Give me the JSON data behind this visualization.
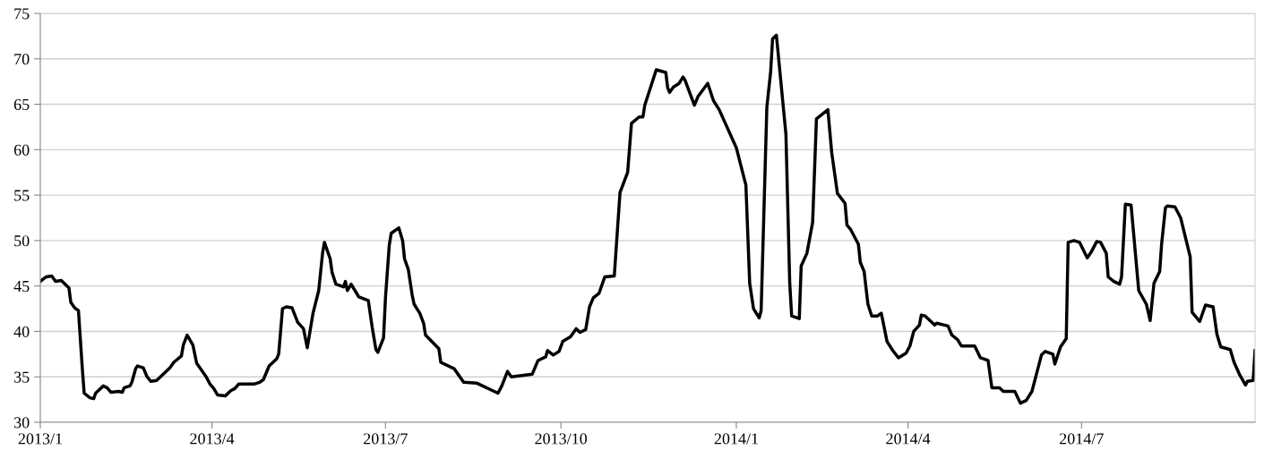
{
  "chart_data": {
    "type": "line",
    "x": [
      "2013-01-01",
      "2013-01-04",
      "2013-01-07",
      "2013-01-09",
      "2013-01-12",
      "2013-01-15",
      "2013-01-16",
      "2013-01-17",
      "2013-01-19",
      "2013-01-21",
      "2013-01-23",
      "2013-01-24",
      "2013-01-27",
      "2013-01-29",
      "2013-01-30",
      "2013-02-01",
      "2013-02-03",
      "2013-02-05",
      "2013-02-07",
      "2013-02-11",
      "2013-02-13",
      "2013-02-14",
      "2013-02-17",
      "2013-02-18",
      "2013-02-20",
      "2013-02-21",
      "2013-02-24",
      "2013-02-26",
      "2013-02-28",
      "2013-03-03",
      "2013-03-05",
      "2013-03-10",
      "2013-03-12",
      "2013-03-16",
      "2013-03-17",
      "2013-03-19",
      "2013-03-22",
      "2013-03-24",
      "2013-03-29",
      "2013-03-31",
      "2013-04-02",
      "2013-04-04",
      "2013-04-08",
      "2013-04-11",
      "2013-04-13",
      "2013-04-15",
      "2013-04-23",
      "2013-04-26",
      "2013-04-28",
      "2013-05-01",
      "2013-05-05",
      "2013-05-06",
      "2013-05-08",
      "2013-05-10",
      "2013-05-13",
      "2013-05-16",
      "2013-05-19",
      "2013-05-21",
      "2013-05-24",
      "2013-05-27",
      "2013-05-29",
      "2013-05-30",
      "2013-06-02",
      "2013-06-03",
      "2013-06-05",
      "2013-06-09",
      "2013-06-10",
      "2013-06-11",
      "2013-06-13",
      "2013-06-15",
      "2013-06-17",
      "2013-06-22",
      "2013-06-24",
      "2013-06-26",
      "2013-06-27",
      "2013-06-30",
      "2013-07-01",
      "2013-07-03",
      "2013-07-04",
      "2013-07-08",
      "2013-07-10",
      "2013-07-11",
      "2013-07-13",
      "2013-07-15",
      "2013-07-16",
      "2013-07-19",
      "2013-07-21",
      "2013-07-22",
      "2013-07-29",
      "2013-07-30",
      "2013-08-06",
      "2013-08-11",
      "2013-08-18",
      "2013-08-29",
      "2013-08-31",
      "2013-09-03",
      "2013-09-05",
      "2013-09-16",
      "2013-09-19",
      "2013-09-23",
      "2013-09-24",
      "2013-09-27",
      "2013-09-30",
      "2013-10-02",
      "2013-10-06",
      "2013-10-09",
      "2013-10-11",
      "2013-10-14",
      "2013-10-16",
      "2013-10-18",
      "2013-10-21",
      "2013-10-24",
      "2013-10-29",
      "2013-10-30",
      "2013-11-01",
      "2013-11-05",
      "2013-11-07",
      "2013-11-11",
      "2013-11-13",
      "2013-11-14",
      "2013-11-20",
      "2013-11-25",
      "2013-11-26",
      "2013-11-27",
      "2013-11-29",
      "2013-12-02",
      "2013-12-04",
      "2013-12-05",
      "2013-12-10",
      "2013-12-12",
      "2013-12-17",
      "2013-12-20",
      "2013-12-23",
      "2014-01-01",
      "2014-01-06",
      "2014-01-08",
      "2014-01-10",
      "2014-01-13",
      "2014-01-14",
      "2014-01-17",
      "2014-01-19",
      "2014-01-20",
      "2014-01-22",
      "2014-01-27",
      "2014-01-29",
      "2014-01-30",
      "2014-02-03",
      "2014-02-04",
      "2014-02-07",
      "2014-02-10",
      "2014-02-12",
      "2014-02-18",
      "2014-02-20",
      "2014-02-23",
      "2014-02-27",
      "2014-02-28",
      "2014-03-02",
      "2014-03-06",
      "2014-03-07",
      "2014-03-09",
      "2014-03-11",
      "2014-03-13",
      "2014-03-16",
      "2014-03-18",
      "2014-03-19",
      "2014-03-21",
      "2014-03-24",
      "2014-03-27",
      "2014-03-31",
      "2014-04-02",
      "2014-04-04",
      "2014-04-07",
      "2014-04-08",
      "2014-04-10",
      "2014-04-15",
      "2014-04-16",
      "2014-04-22",
      "2014-04-24",
      "2014-04-27",
      "2014-04-29",
      "2014-05-06",
      "2014-05-09",
      "2014-05-13",
      "2014-05-15",
      "2014-05-19",
      "2014-05-21",
      "2014-05-27",
      "2014-05-30",
      "2014-06-02",
      "2014-06-05",
      "2014-06-08",
      "2014-06-10",
      "2014-06-12",
      "2014-06-16",
      "2014-06-17",
      "2014-06-20",
      "2014-06-23",
      "2014-06-24",
      "2014-06-27",
      "2014-06-30",
      "2014-07-04",
      "2014-07-06",
      "2014-07-09",
      "2014-07-11",
      "2014-07-14",
      "2014-07-15",
      "2014-07-18",
      "2014-07-21",
      "2014-07-22",
      "2014-07-24",
      "2014-07-27",
      "2014-07-31",
      "2014-08-04",
      "2014-08-06",
      "2014-08-08",
      "2014-08-11",
      "2014-08-12",
      "2014-08-14",
      "2014-08-15",
      "2014-08-19",
      "2014-08-22",
      "2014-08-27",
      "2014-08-28",
      "2014-09-01",
      "2014-09-04",
      "2014-09-08",
      "2014-09-10",
      "2014-09-12",
      "2014-09-17",
      "2014-09-19",
      "2014-09-22",
      "2014-09-25",
      "2014-09-26",
      "2014-09-29",
      "2014-09-30"
    ],
    "series": [
      {
        "color": "#000000",
        "values": [
          45.5,
          46.0,
          46.1,
          45.5,
          45.6,
          45.0,
          44.8,
          43.2,
          42.6,
          42.3,
          36.0,
          33.2,
          32.7,
          32.6,
          33.2,
          33.6,
          34.0,
          33.8,
          33.3,
          33.4,
          33.3,
          33.8,
          34.0,
          34.4,
          35.9,
          36.2,
          36.0,
          35.0,
          34.5,
          34.6,
          35.0,
          36.0,
          36.6,
          37.3,
          38.5,
          39.6,
          38.5,
          36.5,
          35.0,
          34.2,
          33.7,
          33.0,
          32.9,
          33.5,
          33.7,
          34.2,
          34.2,
          34.4,
          34.7,
          36.2,
          37.0,
          37.5,
          42.5,
          42.7,
          42.6,
          41.0,
          40.3,
          38.2,
          42.0,
          44.5,
          48.6,
          49.8,
          48.0,
          46.5,
          45.2,
          44.9,
          45.5,
          44.5,
          45.2,
          44.5,
          43.8,
          43.4,
          40.5,
          38.0,
          37.7,
          39.3,
          43.7,
          49.5,
          50.8,
          51.4,
          50.0,
          48.0,
          46.8,
          44.0,
          43.0,
          42.0,
          40.9,
          39.6,
          38.1,
          36.6,
          35.9,
          34.4,
          34.3,
          33.2,
          34.0,
          35.6,
          35.0,
          35.3,
          36.8,
          37.2,
          37.9,
          37.4,
          37.8,
          38.9,
          39.4,
          40.3,
          39.9,
          40.2,
          42.7,
          43.7,
          44.2,
          46.0,
          46.1,
          49.2,
          55.3,
          57.5,
          62.9,
          63.6,
          63.6,
          64.9,
          68.8,
          68.5,
          66.8,
          66.3,
          66.9,
          67.3,
          68.0,
          67.7,
          64.9,
          65.9,
          67.3,
          65.4,
          64.4,
          60.2,
          56.1,
          45.3,
          42.5,
          41.5,
          42.3,
          64.7,
          68.6,
          72.2,
          72.6,
          61.7,
          45.3,
          41.7,
          41.4,
          47.2,
          48.6,
          52.0,
          63.4,
          64.4,
          59.7,
          55.2,
          54.1,
          51.7,
          51.2,
          49.6,
          47.6,
          46.6,
          43.0,
          41.7,
          41.7,
          42.0,
          41.0,
          38.9,
          37.9,
          37.1,
          37.6,
          38.4,
          40.0,
          40.7,
          41.8,
          41.7,
          40.7,
          40.9,
          40.6,
          39.6,
          39.1,
          38.4,
          38.4,
          37.1,
          36.8,
          33.8,
          33.8,
          33.4,
          33.4,
          32.1,
          32.4,
          33.4,
          35.8,
          37.4,
          37.8,
          37.5,
          36.4,
          38.3,
          39.2,
          49.8,
          50.0,
          49.8,
          48.1,
          48.7,
          49.9,
          49.8,
          48.6,
          46.0,
          45.5,
          45.2,
          46.0,
          54.0,
          53.9,
          44.5,
          43.0,
          41.2,
          45.3,
          46.6,
          49.6,
          53.6,
          53.8,
          53.7,
          52.5,
          48.2,
          42.1,
          41.1,
          42.9,
          42.7,
          39.7,
          38.3,
          38.0,
          36.6,
          35.2,
          34.1,
          34.5,
          34.6,
          37.9
        ]
      }
    ],
    "xlim": [
      "2013-01-01",
      "2014-09-30"
    ],
    "xticks": [
      {
        "value": "2013-01-01",
        "label": "2013/1"
      },
      {
        "value": "2013-04-01",
        "label": "2013/4"
      },
      {
        "value": "2013-07-01",
        "label": "2013/7"
      },
      {
        "value": "2013-10-01",
        "label": "2013/10"
      },
      {
        "value": "2014-01-01",
        "label": "2014/1"
      },
      {
        "value": "2014-04-01",
        "label": "2014/4"
      },
      {
        "value": "2014-07-01",
        "label": "2014/7"
      }
    ],
    "ylim": [
      30,
      75
    ],
    "yticks": [
      30,
      35,
      40,
      45,
      50,
      55,
      60,
      65,
      70,
      75
    ],
    "grid": "y",
    "line_style": "solid",
    "marker": "none"
  }
}
